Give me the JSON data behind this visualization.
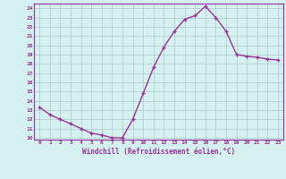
{
  "x": [
    0,
    1,
    2,
    3,
    4,
    5,
    6,
    7,
    8,
    9,
    10,
    11,
    12,
    13,
    14,
    15,
    16,
    17,
    18,
    19,
    20,
    21,
    22,
    23
  ],
  "y": [
    13.3,
    12.5,
    12.0,
    11.5,
    11.0,
    10.5,
    10.3,
    10.0,
    10.0,
    12.0,
    14.8,
    17.6,
    19.8,
    21.5,
    22.8,
    23.2,
    24.2,
    23.0,
    21.5,
    19.0,
    18.8,
    18.7,
    18.5,
    18.4
  ],
  "line_color": "#993399",
  "marker": "+",
  "marker_size": 3,
  "bg_color": "#d4f0f0",
  "grid_color": "#b0c8c8",
  "xlabel": "Windchill (Refroidissement éolien,°C)",
  "ylabel_ticks": [
    10,
    11,
    12,
    13,
    14,
    15,
    16,
    17,
    18,
    19,
    20,
    21,
    22,
    23,
    24
  ],
  "xlim": [
    -0.5,
    23.5
  ],
  "ylim": [
    9.8,
    24.5
  ],
  "xtick_labels": [
    "0",
    "1",
    "2",
    "3",
    "4",
    "5",
    "6",
    "7",
    "8",
    "9",
    "10",
    "11",
    "12",
    "13",
    "14",
    "15",
    "16",
    "17",
    "18",
    "19",
    "20",
    "21",
    "22",
    "23"
  ]
}
